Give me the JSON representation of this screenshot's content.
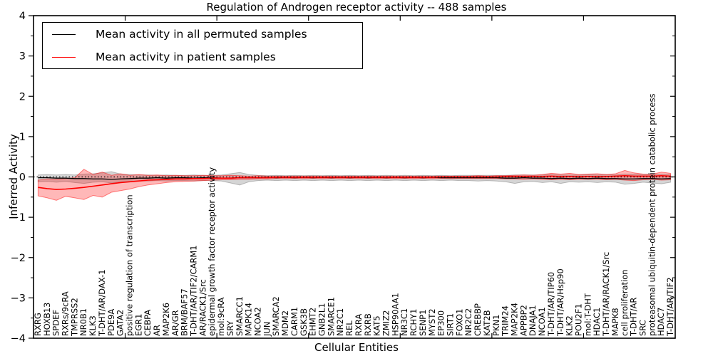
{
  "title": "Regulation of Androgen receptor activity -- 488 samples",
  "axes": {
    "xlabel": "Cellular Entities",
    "ylabel": "Inferred Activity",
    "yticks": [
      4,
      3,
      2,
      1,
      0,
      -1,
      -2,
      -3,
      -4
    ],
    "ylim": [
      -4,
      4
    ]
  },
  "legend": {
    "entries": [
      {
        "label": "Mean activity in all permuted samples",
        "color": "#000000"
      },
      {
        "label": "Mean activity in patient samples",
        "color": "#ff0000"
      }
    ]
  },
  "chart_data": {
    "type": "line",
    "title": "Regulation of Androgen receptor activity -- 488 samples",
    "xlabel": "Cellular Entities",
    "ylabel": "Inferred Activity",
    "ylim": [
      -4,
      4
    ],
    "grid": false,
    "legend_position": "upper left",
    "zero_line": 0,
    "categories": [
      "RXRG",
      "HOXB13",
      "SPDEF",
      "RXRs/9cRA",
      "TMPRSS2",
      "NR0B1",
      "KLK3",
      "T-DHT/AR/DAX-1",
      "PDE9A",
      "GATA2",
      "positive regulation of transcription",
      "EGR1",
      "CEBPA",
      "AR",
      "MAP2K6",
      "AR/GR",
      "BRM/BAF57",
      "T-DHT/AR/TIF2/CARM1",
      "AR/RACK1/Src",
      "epidermal growth factor receptor activity",
      "mol:9cRA",
      "SRY",
      "SMARCC1",
      "MAPK14",
      "NCOA2",
      "JUN",
      "SMARCA2",
      "MDM2",
      "CARM1",
      "GSK3B",
      "EHMT2",
      "GNB2L1",
      "SMARCE1",
      "NR2C1",
      "REL",
      "RXRA",
      "RXRB",
      "KAT5",
      "ZMIZ2",
      "HSP90AA1",
      "NR3C1",
      "RCHY1",
      "SENP1",
      "MYST2",
      "EP300",
      "SIRT1",
      "FOXO1",
      "NR2C2",
      "CREBBP",
      "KAT2B",
      "PKN1",
      "TRIM24",
      "MAP2K4",
      "APPBP2",
      "DNAJA1",
      "NCOA1",
      "T-DHT/AR/TIP60",
      "T-DHT/AR/Hsp90",
      "KLK2",
      "POU2F1",
      "mol:T-DHT",
      "HDAC1",
      "T-DHT/AR/RACK1/Src",
      "MAPK8",
      "cell proliferation",
      "T-DHT/AR",
      "SRC",
      "proteasomal ubiquitin-dependent protein catabolic process",
      "HDAC7",
      "T-DHT/AR/TIF2"
    ],
    "series": [
      {
        "name": "Mean activity in all permuted samples",
        "color": "#000000",
        "values": [
          -0.02,
          -0.02,
          -0.03,
          -0.03,
          -0.04,
          -0.04,
          -0.05,
          -0.05,
          -0.06,
          -0.05,
          -0.04,
          -0.03,
          -0.03,
          -0.02,
          -0.03,
          -0.02,
          -0.02,
          -0.03,
          -0.02,
          -0.02,
          -0.03,
          -0.03,
          -0.02,
          -0.02,
          -0.02,
          -0.01,
          -0.02,
          -0.01,
          -0.02,
          -0.01,
          -0.02,
          -0.01,
          -0.02,
          -0.01,
          -0.02,
          -0.01,
          -0.02,
          -0.01,
          -0.02,
          -0.01,
          -0.02,
          -0.01,
          -0.02,
          -0.01,
          -0.02,
          -0.02,
          -0.02,
          -0.02,
          -0.02,
          -0.02,
          -0.02,
          -0.03,
          -0.03,
          -0.02,
          -0.03,
          -0.03,
          -0.04,
          -0.03,
          -0.04,
          -0.03,
          -0.04,
          -0.03,
          -0.04,
          -0.04,
          -0.05,
          -0.05,
          -0.04,
          -0.04,
          -0.05,
          -0.04
        ]
      },
      {
        "name": "Mean activity in patient samples",
        "color": "#ff0000",
        "values": [
          -0.26,
          -0.29,
          -0.31,
          -0.3,
          -0.28,
          -0.26,
          -0.23,
          -0.2,
          -0.17,
          -0.14,
          -0.12,
          -0.1,
          -0.08,
          -0.07,
          -0.06,
          -0.05,
          -0.05,
          -0.04,
          -0.04,
          -0.03,
          -0.03,
          -0.03,
          -0.02,
          -0.02,
          -0.02,
          -0.02,
          -0.01,
          -0.01,
          -0.01,
          -0.01,
          -0.01,
          -0.01,
          -0.01,
          -0.01,
          -0.01,
          -0.01,
          -0.01,
          -0.01,
          -0.01,
          -0.01,
          -0.01,
          -0.01,
          -0.01,
          -0.01,
          0.0,
          0.0,
          0.0,
          0.0,
          0.0,
          0.0,
          0.0,
          0.01,
          0.01,
          0.01,
          0.01,
          0.01,
          0.02,
          0.01,
          0.01,
          0.01,
          0.01,
          0.01,
          0.01,
          0.02,
          0.03,
          0.02,
          0.02,
          0.02,
          0.03,
          0.02
        ]
      }
    ],
    "bands": [
      {
        "name": "permuted-range",
        "color": "#888888",
        "alpha": 0.35,
        "upper": [
          0.05,
          0.06,
          0.05,
          0.06,
          0.05,
          0.07,
          0.08,
          0.1,
          0.13,
          0.07,
          0.06,
          0.05,
          0.05,
          0.04,
          0.05,
          0.04,
          0.04,
          0.05,
          0.04,
          0.04,
          0.05,
          0.08,
          0.11,
          0.06,
          0.04,
          0.03,
          0.04,
          0.03,
          0.04,
          0.03,
          0.04,
          0.03,
          0.04,
          0.03,
          0.04,
          0.03,
          0.04,
          0.03,
          0.04,
          0.03,
          0.04,
          0.03,
          0.04,
          0.03,
          0.04,
          0.03,
          0.04,
          0.04,
          0.04,
          0.04,
          0.04,
          0.04,
          0.05,
          0.05,
          0.05,
          0.05,
          0.06,
          0.05,
          0.05,
          0.05,
          0.06,
          0.05,
          0.06,
          0.05,
          0.07,
          0.07,
          0.06,
          0.06,
          0.07,
          0.06
        ],
        "lower": [
          -0.12,
          -0.11,
          -0.13,
          -0.11,
          -0.14,
          -0.16,
          -0.13,
          -0.12,
          -0.15,
          -0.12,
          -0.11,
          -0.1,
          -0.1,
          -0.09,
          -0.1,
          -0.09,
          -0.09,
          -0.1,
          -0.09,
          -0.09,
          -0.1,
          -0.15,
          -0.2,
          -0.12,
          -0.09,
          -0.08,
          -0.09,
          -0.08,
          -0.09,
          -0.08,
          -0.09,
          -0.08,
          -0.09,
          -0.08,
          -0.09,
          -0.08,
          -0.09,
          -0.08,
          -0.09,
          -0.08,
          -0.09,
          -0.08,
          -0.09,
          -0.08,
          -0.09,
          -0.08,
          -0.09,
          -0.09,
          -0.1,
          -0.09,
          -0.1,
          -0.12,
          -0.16,
          -0.12,
          -0.11,
          -0.14,
          -0.12,
          -0.16,
          -0.12,
          -0.13,
          -0.12,
          -0.14,
          -0.12,
          -0.13,
          -0.18,
          -0.16,
          -0.13,
          -0.15,
          -0.17,
          -0.13
        ]
      },
      {
        "name": "patient-range",
        "color": "#ff0000",
        "alpha": 0.28,
        "upper": [
          -0.08,
          -0.05,
          -0.06,
          -0.04,
          -0.02,
          0.19,
          0.06,
          0.12,
          0.04,
          0.08,
          0.04,
          0.06,
          0.04,
          0.05,
          0.03,
          0.04,
          0.03,
          0.03,
          0.04,
          0.03,
          0.03,
          0.04,
          0.03,
          0.02,
          0.03,
          0.02,
          0.02,
          0.02,
          0.02,
          0.02,
          0.02,
          0.02,
          0.02,
          0.02,
          0.02,
          0.02,
          0.02,
          0.02,
          0.02,
          0.02,
          0.02,
          0.02,
          0.02,
          0.02,
          0.02,
          0.02,
          0.02,
          0.02,
          0.03,
          0.02,
          0.03,
          0.03,
          0.04,
          0.05,
          0.04,
          0.06,
          0.09,
          0.07,
          0.09,
          0.06,
          0.07,
          0.08,
          0.06,
          0.08,
          0.16,
          0.1,
          0.07,
          0.07,
          0.12,
          0.09
        ],
        "lower": [
          -0.47,
          -0.52,
          -0.58,
          -0.48,
          -0.52,
          -0.56,
          -0.46,
          -0.5,
          -0.38,
          -0.34,
          -0.3,
          -0.24,
          -0.2,
          -0.17,
          -0.14,
          -0.12,
          -0.11,
          -0.1,
          -0.09,
          -0.08,
          -0.07,
          -0.07,
          -0.06,
          -0.06,
          -0.05,
          -0.05,
          -0.04,
          -0.04,
          -0.04,
          -0.04,
          -0.04,
          -0.04,
          -0.04,
          -0.04,
          -0.04,
          -0.04,
          -0.04,
          -0.04,
          -0.04,
          -0.04,
          -0.04,
          -0.04,
          -0.04,
          -0.04,
          -0.04,
          -0.04,
          -0.04,
          -0.04,
          -0.04,
          -0.04,
          -0.04,
          -0.05,
          -0.05,
          -0.06,
          -0.05,
          -0.06,
          -0.07,
          -0.06,
          -0.07,
          -0.06,
          -0.06,
          -0.06,
          -0.07,
          -0.06,
          -0.08,
          -0.09,
          -0.07,
          -0.06,
          -0.08,
          -0.07
        ]
      }
    ]
  }
}
